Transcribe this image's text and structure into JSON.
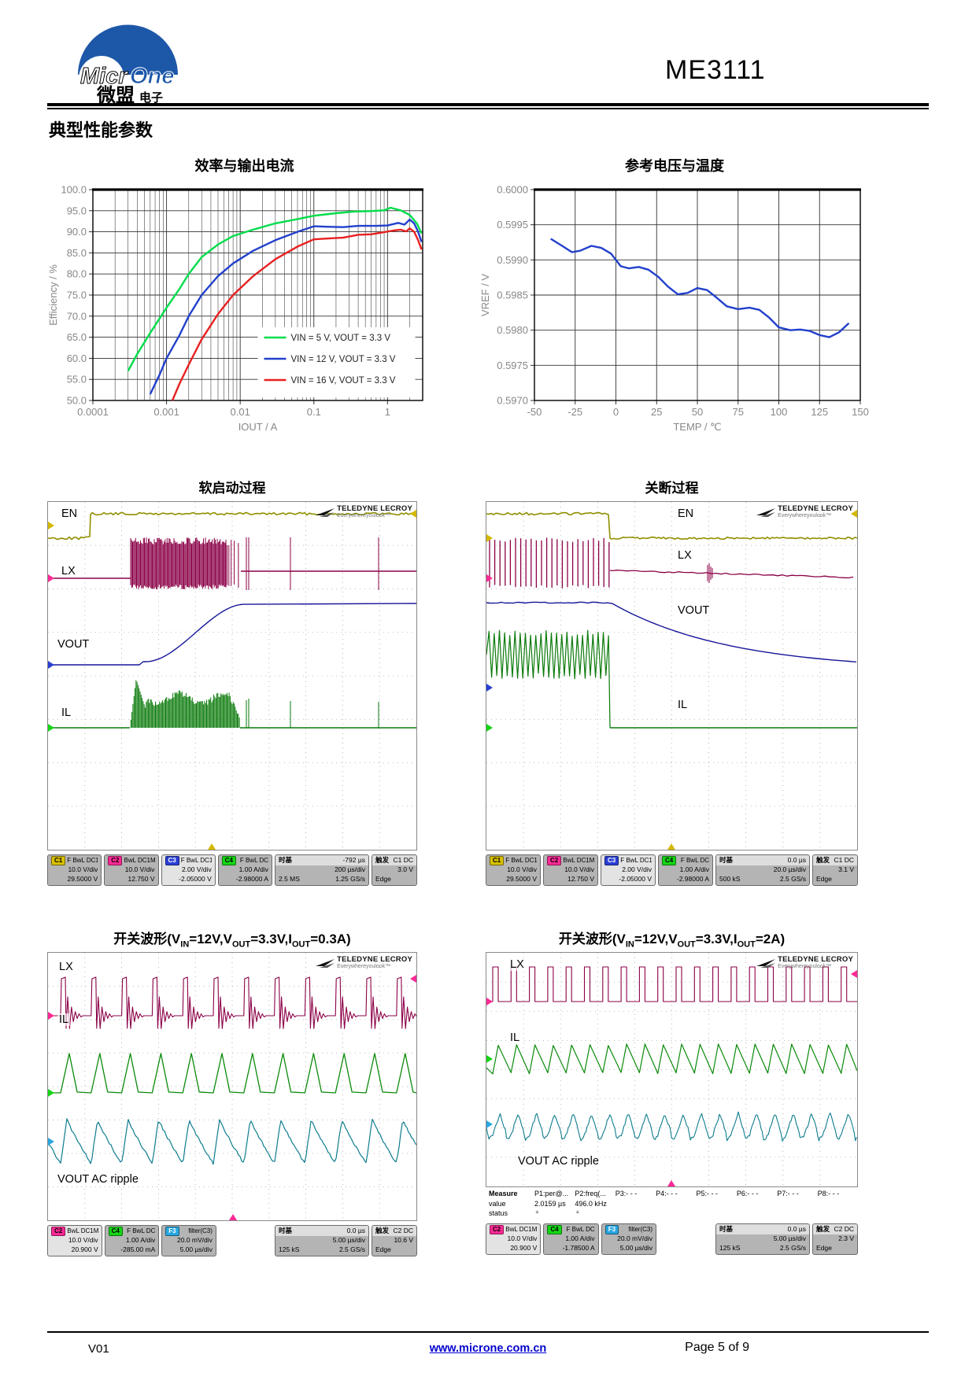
{
  "header": {
    "part_number": "ME3111",
    "logo": {
      "brand_white": "Micr",
      "brand_blue": "One",
      "company_cn": "微盟",
      "company_suffix": "电子",
      "brand_color": "#1d57a8"
    }
  },
  "section_title": "典型性能参数",
  "chart_data": [
    {
      "type": "line",
      "title": "效率与输出电流",
      "xlabel": "IOUT / A",
      "ylabel": "Efficiency / %",
      "xscale": "log",
      "xlim": [
        0.0001,
        3
      ],
      "ylim": [
        50,
        100
      ],
      "xticks": [
        0.0001,
        0.001,
        0.01,
        0.1,
        1
      ],
      "xtick_labels": [
        "0.0001",
        "0.001",
        "0.01",
        "0.1",
        "1"
      ],
      "yticks": [
        50,
        55,
        60,
        65,
        70,
        75,
        80,
        85,
        90,
        95,
        100
      ],
      "ytick_labels": [
        "50.0",
        "55.0",
        "60.0",
        "65.0",
        "70.0",
        "75.0",
        "80.0",
        "85.0",
        "90.0",
        "95.0",
        "100.0"
      ],
      "grid": true,
      "legend_position": "inside-bottom-right",
      "series": [
        {
          "name": "VIN = 5 V, VOUT = 3.3 V",
          "color": "#00dd4a",
          "x": [
            0.0003,
            0.0004,
            0.0006,
            0.001,
            0.0015,
            0.002,
            0.003,
            0.005,
            0.008,
            0.015,
            0.03,
            0.06,
            0.1,
            0.2,
            0.35,
            0.6,
            0.9,
            1.1,
            1.5,
            2.0,
            2.5,
            2.9
          ],
          "y": [
            57,
            61,
            66,
            72,
            76.5,
            80,
            84,
            87,
            89,
            90.5,
            92,
            93,
            93.8,
            94.4,
            94.8,
            94.9,
            95.1,
            95.7,
            95.1,
            94,
            92,
            89.6
          ]
        },
        {
          "name": "VIN = 12 V, VOUT = 3.3 V",
          "color": "#2240cc",
          "x": [
            0.0006,
            0.0008,
            0.001,
            0.0015,
            0.002,
            0.003,
            0.005,
            0.008,
            0.015,
            0.03,
            0.06,
            0.1,
            0.15,
            0.25,
            0.4,
            0.7,
            1.0,
            1.4,
            1.7,
            2.0,
            2.3,
            2.6,
            2.9
          ],
          "y": [
            51.5,
            56,
            60,
            65.5,
            70,
            75,
            79.5,
            82.5,
            85.5,
            88,
            90,
            91.3,
            91.2,
            91.1,
            91.4,
            91.4,
            91.5,
            92.1,
            91.7,
            92.9,
            92,
            90,
            87.6
          ]
        },
        {
          "name": "VIN = 16 V, VOUT = 3.3 V",
          "color": "#e82020",
          "x": [
            0.0012,
            0.0015,
            0.002,
            0.003,
            0.005,
            0.008,
            0.015,
            0.03,
            0.06,
            0.1,
            0.15,
            0.25,
            0.4,
            0.6,
            0.9,
            1.2,
            1.5,
            1.8,
            2.0,
            2.3,
            2.6,
            2.9
          ],
          "y": [
            50,
            54,
            58.5,
            64.5,
            70.5,
            75,
            79.5,
            83.5,
            86.5,
            88.2,
            88.4,
            88.6,
            89.3,
            89.4,
            89.9,
            90.3,
            90.5,
            90.1,
            90.8,
            90,
            88,
            85.8
          ]
        }
      ]
    },
    {
      "type": "line",
      "title": "参考电压与温度",
      "xlabel": "TEMP / ℃",
      "ylabel": "VREF / V",
      "xscale": "linear",
      "xlim": [
        -50,
        150
      ],
      "ylim": [
        0.597,
        0.6
      ],
      "xticks": [
        -50,
        -25,
        0,
        25,
        50,
        75,
        100,
        125,
        150
      ],
      "xtick_labels": [
        "-50",
        "-25",
        "0",
        "25",
        "50",
        "75",
        "100",
        "125",
        "150"
      ],
      "yticks": [
        0.597,
        0.5975,
        0.598,
        0.5985,
        0.599,
        0.5995,
        0.6
      ],
      "ytick_labels": [
        "0.5970",
        "0.5975",
        "0.5980",
        "0.5985",
        "0.5990",
        "0.5995",
        "0.6000"
      ],
      "grid": true,
      "series": [
        {
          "name": "VREF",
          "color": "#2240cc",
          "x": [
            -40,
            -33,
            -27,
            -22,
            -15,
            -9,
            -3,
            3,
            8,
            14,
            20,
            26,
            32,
            38,
            44,
            50,
            56,
            62,
            68,
            75,
            82,
            88,
            94,
            100,
            107,
            113,
            119,
            125,
            131,
            137,
            143
          ],
          "y": [
            0.5993,
            0.5992,
            0.59911,
            0.59913,
            0.5992,
            0.59917,
            0.59909,
            0.59891,
            0.59888,
            0.5989,
            0.59886,
            0.59876,
            0.59862,
            0.59851,
            0.59853,
            0.5986,
            0.59857,
            0.59846,
            0.59834,
            0.5983,
            0.59832,
            0.59829,
            0.59818,
            0.59804,
            0.598,
            0.59801,
            0.59799,
            0.59793,
            0.5979,
            0.59797,
            0.5981
          ]
        }
      ]
    }
  ],
  "scope_brand": {
    "name": "TELEDYNE LECROY",
    "tagline": "Everywhereyoulook™"
  },
  "scopes": [
    {
      "title_segments": [
        {
          "t": "软启动过程"
        }
      ],
      "trace_labels": [
        "EN",
        "LX",
        "VOUT",
        "IL"
      ],
      "trace_colors": {
        "en": "#8f8f00",
        "lx": "#8b0047",
        "vout": "#16169a",
        "il": "#0a7a0a",
        "ripple": "#0e7c8e"
      },
      "channels": [
        {
          "chip": "C1",
          "chip_bg": "#d8bf00",
          "chip_fg": "#000",
          "mode": "F BwL DC1M",
          "scale": "10.0 V/div",
          "offset": "29.5000 V",
          "bg": "#b4b4b4"
        },
        {
          "chip": "C2",
          "chip_bg": "#ff2a96",
          "chip_fg": "#000",
          "mode": "BwL DC1M",
          "scale": "10.0 V/div",
          "offset": "12.750 V",
          "bg": "#b4b4b4"
        },
        {
          "chip": "C3",
          "chip_bg": "#2a3fd4",
          "chip_fg": "#fff",
          "mode": "F BwL DC1M",
          "scale": "2.00 V/div",
          "offset": "-2.05000 V",
          "bg": "#e3e3e3"
        },
        {
          "chip": "C4",
          "chip_bg": "#16d516",
          "chip_fg": "#000",
          "mode": "F BwL DC",
          "scale": "1.00 A/div",
          "offset": "-2.98000 A",
          "bg": "#b4b4b4"
        }
      ],
      "timebase": {
        "label": "时基",
        "t0": "-792 µs",
        "per_div": "200 µs/div",
        "samples": "2.5 MS",
        "rate": "1.25 GS/s"
      },
      "trigger": {
        "label": "触发",
        "source": "C1 DC",
        "level": "3.0 V",
        "type": "Edge"
      }
    },
    {
      "title_segments": [
        {
          "t": "关断过程"
        }
      ],
      "trace_labels": [
        "EN",
        "LX",
        "VOUT",
        "IL"
      ],
      "trace_colors": {
        "en": "#8f8f00",
        "lx": "#8b0047",
        "vout": "#16169a",
        "il": "#0a7a0a",
        "ripple": "#0e7c8e"
      },
      "channels": [
        {
          "chip": "C1",
          "chip_bg": "#d8bf00",
          "chip_fg": "#000",
          "mode": "F BwL DC1M",
          "scale": "10.0 V/div",
          "offset": "29.5000 V",
          "bg": "#b4b4b4"
        },
        {
          "chip": "C2",
          "chip_bg": "#ff2a96",
          "chip_fg": "#000",
          "mode": "BwL DC1M",
          "scale": "10.0 V/div",
          "offset": "12.750 V",
          "bg": "#b4b4b4"
        },
        {
          "chip": "C3",
          "chip_bg": "#2a3fd4",
          "chip_fg": "#fff",
          "mode": "F BwL DC1M",
          "scale": "2.00 V/div",
          "offset": "-2.05000 V",
          "bg": "#e3e3e3"
        },
        {
          "chip": "C4",
          "chip_bg": "#16d516",
          "chip_fg": "#000",
          "mode": "F BwL DC",
          "scale": "1.00 A/div",
          "offset": "-2.98000 A",
          "bg": "#b4b4b4"
        }
      ],
      "timebase": {
        "label": "时基",
        "t0": "0.0 µs",
        "per_div": "20.0 µs/div",
        "samples": "500 kS",
        "rate": "2.5 GS/s"
      },
      "trigger": {
        "label": "触发",
        "source": "C1 DC",
        "level": "3.1 V",
        "type": "Edge"
      }
    },
    {
      "title_segments": [
        {
          "t": "开关波形(V"
        },
        {
          "s": "IN"
        },
        {
          "t": "=12V,V"
        },
        {
          "s": "OUT"
        },
        {
          "t": "=3.3V,I"
        },
        {
          "s": "OUT"
        },
        {
          "t": "=0.3A)"
        }
      ],
      "trace_labels": [
        "LX",
        "IL",
        "VOUT AC ripple"
      ],
      "trace_colors": {
        "en": "#8f8f00",
        "lx": "#8b0047",
        "vout": "#16169a",
        "il": "#0a8a0a",
        "ripple": "#0e7c8e"
      },
      "channels": [
        {
          "chip": "C2",
          "chip_bg": "#ff2a96",
          "chip_fg": "#000",
          "mode": "BwL DC1M",
          "scale": "10.0 V/div",
          "offset": "20.900 V",
          "bg": "#e3e3e3"
        },
        {
          "chip": "C4",
          "chip_bg": "#16d516",
          "chip_fg": "#000",
          "mode": "F BwL DC",
          "scale": "1.00 A/div",
          "offset": "-285.00 mA",
          "bg": "#b4b4b4"
        },
        {
          "chip": "F3",
          "chip_bg": "#2aa7e0",
          "chip_fg": "#fff",
          "mode": "filter(C3)",
          "scale": "20.0 mV/div",
          "offset": "5.00 µs/div",
          "bg": "#b4b4b4"
        }
      ],
      "timebase": {
        "label": "时基",
        "t0": "0.0 µs",
        "per_div": "5.00 µs/div",
        "samples": "125 kS",
        "rate": "2.5 GS/s"
      },
      "trigger": {
        "label": "触发",
        "source": "C2 DC",
        "level": "10.6 V",
        "type": "Edge"
      }
    },
    {
      "title_segments": [
        {
          "t": "开关波形(V"
        },
        {
          "s": "IN"
        },
        {
          "t": "=12V,V"
        },
        {
          "s": "OUT"
        },
        {
          "t": "=3.3V,I"
        },
        {
          "s": "OUT"
        },
        {
          "t": "=2A)"
        }
      ],
      "trace_labels": [
        "LX",
        "IL",
        "VOUT AC ripple"
      ],
      "trace_colors": {
        "en": "#8f8f00",
        "lx": "#8b0047",
        "vout": "#16169a",
        "il": "#0a8a0a",
        "ripple": "#0e7c8e"
      },
      "channels": [
        {
          "chip": "C2",
          "chip_bg": "#ff2a96",
          "chip_fg": "#000",
          "mode": "BwL DC1M",
          "scale": "10.0 V/div",
          "offset": "20.900 V",
          "bg": "#e3e3e3"
        },
        {
          "chip": "C4",
          "chip_bg": "#16d516",
          "chip_fg": "#000",
          "mode": "F BwL DC",
          "scale": "1.00 A/div",
          "offset": "-1.78500 A",
          "bg": "#b4b4b4"
        },
        {
          "chip": "F3",
          "chip_bg": "#2aa7e0",
          "chip_fg": "#fff",
          "mode": "filter(C3)",
          "scale": "20.0 mV/div",
          "offset": "5.00 µs/div",
          "bg": "#b4b4b4"
        }
      ],
      "timebase": {
        "label": "时基",
        "t0": "0.0 µs",
        "per_div": "5.00 µs/div",
        "samples": "125 kS",
        "rate": "2.5 GS/s"
      },
      "trigger": {
        "label": "触发",
        "source": "C2 DC",
        "level": "2.3 V",
        "type": "Edge"
      },
      "measure": {
        "row_labels": [
          "Measure",
          "value",
          "status"
        ],
        "items": [
          {
            "name": "P1:per@...",
            "value": "2.0159 µs",
            "status": "warn"
          },
          {
            "name": "P2:freq(...",
            "value": "496.0 kHz",
            "status": "warn"
          },
          {
            "name": "P3:- - -"
          },
          {
            "name": "P4:- - -"
          },
          {
            "name": "P5:- - -"
          },
          {
            "name": "P6:- - -"
          },
          {
            "name": "P7:- - -"
          },
          {
            "name": "P8:- - -"
          }
        ]
      }
    }
  ],
  "page_footer": {
    "version": "V01",
    "website": "www.microne.com.cn",
    "page": "Page 5 of 9"
  }
}
